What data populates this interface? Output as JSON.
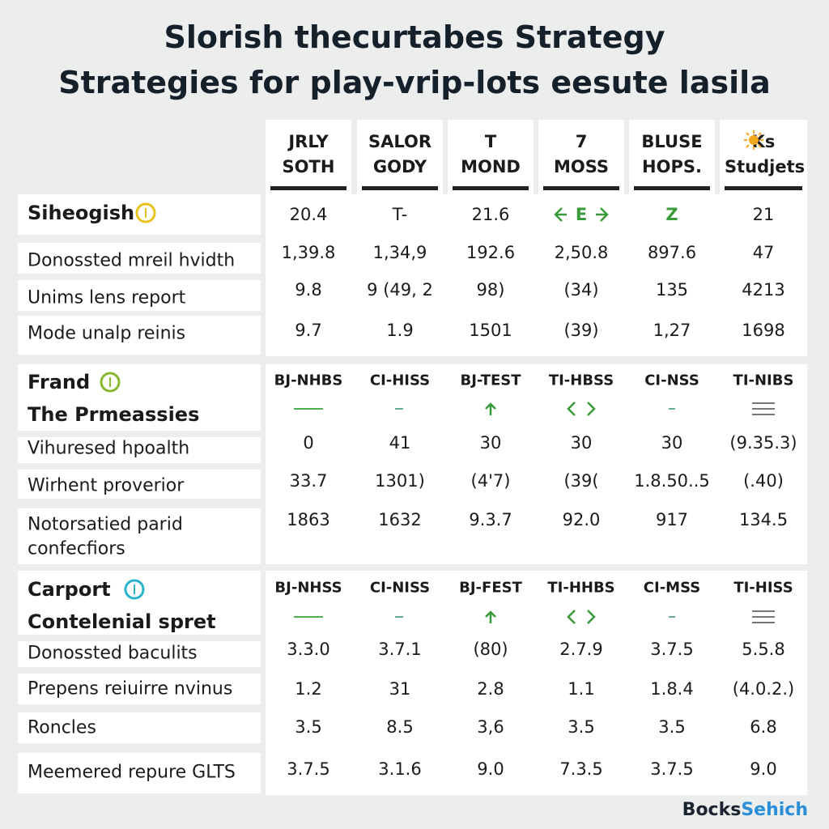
{
  "header": {
    "title": "Slorish thecurtabes Strategy",
    "subtitle": "Strategies for play-vrip-lots eesute lasila"
  },
  "columns": [
    [
      "JRLY",
      "SOTH"
    ],
    [
      "SALOR",
      "GODY"
    ],
    [
      "T",
      "MOND"
    ],
    [
      "7",
      "MOSS"
    ],
    [
      "BLUSE",
      "HOPS."
    ],
    [
      "Ks",
      "Studjets"
    ]
  ],
  "sections": [
    {
      "title": "Siheogish",
      "lead": [
        "20.4",
        "T-",
        "21.6",
        "E",
        "Z",
        "21"
      ],
      "rows": [
        {
          "label": [
            "Donossted mreil hvidth"
          ],
          "values": [
            "1,39.8",
            "1,34,9",
            "192.6",
            "2,50.8",
            "897.6",
            "47"
          ]
        },
        {
          "label": [
            "Unims lens report"
          ],
          "values": [
            "9.8",
            "9 (49, 2",
            "98)",
            "(34)",
            "135",
            "4213"
          ]
        },
        {
          "label": [
            "Mode unalp reinis"
          ],
          "values": [
            "9.7",
            "1.9",
            "1501",
            "(39)",
            "1,27",
            "1698"
          ]
        }
      ]
    },
    {
      "title": "Frand",
      "subtitle": "The Prmeassies",
      "subheaders": [
        "BJ-NHBS",
        "CI-HISS",
        "BJ-TEST",
        "TI-HBSS",
        "CI-NSS",
        "TI-NIBS"
      ],
      "rows": [
        {
          "label": [
            "Vihuresed hpoalth"
          ],
          "values": [
            "0",
            "41",
            "30",
            "30",
            "30",
            "(9.35.3)"
          ]
        },
        {
          "label": [
            "Wirhent proverior"
          ],
          "values": [
            "33.7",
            "1301)",
            "(4'7)",
            "(39(",
            "1.8.50..5",
            "(.40)"
          ]
        },
        {
          "label": [
            "Notorsatied parid",
            "confecfiors"
          ],
          "values": [
            "1863",
            "1632",
            "9.3.7",
            "92.0",
            "917",
            "134.5"
          ]
        }
      ]
    },
    {
      "title": "Carport",
      "subtitle": "Contelenial spret",
      "subheaders": [
        "BJ-NHSS",
        "CI-NISS",
        "BJ-FEST",
        "TI-HHBS",
        "CI-MSS",
        "TI-HISS"
      ],
      "rows": [
        {
          "label": [
            "Donossted baculits"
          ],
          "values": [
            "3.3.0",
            "3.7.1",
            "(80)",
            "2.7.9",
            "3.7.5",
            "5.5.8"
          ]
        },
        {
          "label": [
            "Prepens reiuirre nvinus"
          ],
          "values": [
            "1.2",
            "31",
            "2.8",
            "1.1",
            "1.8.4",
            "(4.0.2.)"
          ]
        },
        {
          "label": [
            "Roncles"
          ],
          "values": [
            "3.5",
            "8.5",
            "3,6",
            "3.5",
            "3.5",
            "6.8"
          ]
        },
        {
          "label": [
            "Meemered repure GLTS"
          ],
          "values": [
            "3.7.5",
            "3.1.6",
            "9.0",
            "7.3.5",
            "3.7.5",
            "9.0"
          ]
        }
      ]
    }
  ],
  "footer": {
    "brand": [
      "Bocks",
      "Sehich"
    ]
  }
}
